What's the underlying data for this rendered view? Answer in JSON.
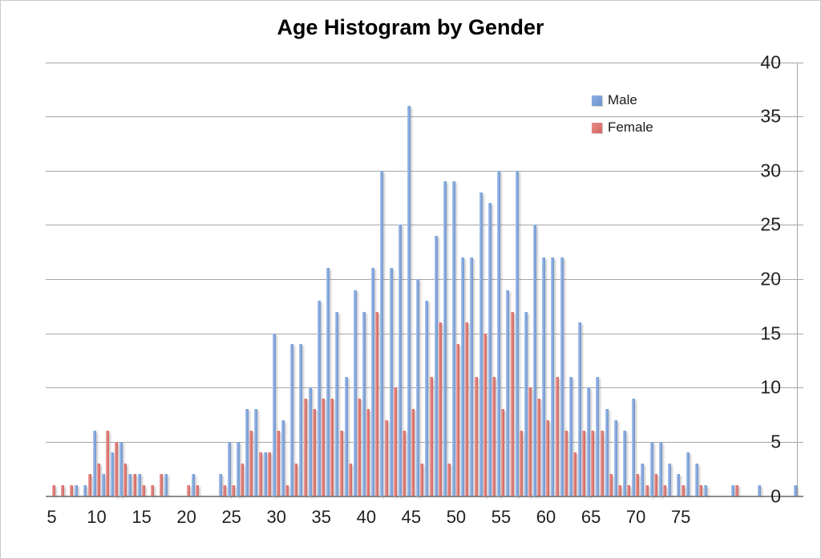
{
  "title": "Age Histogram by Gender",
  "legend": [
    {
      "label": "Male",
      "color": "#7fa3da"
    },
    {
      "label": "Female",
      "color": "#dd7a76"
    }
  ],
  "colors": {
    "male_mid": "#7fa3da",
    "female_mid": "#dd7a76",
    "gridline": "#a6a6a6",
    "axis": "#8c8c8c"
  },
  "y_axis": {
    "ticks": [
      0,
      5,
      10,
      15,
      20,
      25,
      30,
      35,
      40
    ],
    "min": 0,
    "max": 40
  },
  "x_axis": {
    "ticks": [
      5,
      10,
      15,
      20,
      25,
      30,
      35,
      40,
      45,
      50,
      55,
      60,
      65,
      70,
      75
    ]
  },
  "chart_data": {
    "type": "bar",
    "title": "Age Histogram by Gender",
    "xlabel": "",
    "ylabel": "",
    "ylim": [
      0,
      40
    ],
    "grid": true,
    "legend_position": "top-right-inside",
    "age_start": 5,
    "ages": [
      5,
      6,
      7,
      8,
      9,
      10,
      11,
      12,
      13,
      14,
      15,
      16,
      17,
      18,
      19,
      20,
      21,
      22,
      23,
      24,
      25,
      26,
      27,
      28,
      29,
      30,
      31,
      32,
      33,
      34,
      35,
      36,
      37,
      38,
      39,
      40,
      41,
      42,
      43,
      44,
      45,
      46,
      47,
      48,
      49,
      50,
      51,
      52,
      53,
      54,
      55,
      56,
      57,
      58,
      59,
      60,
      61,
      62,
      63,
      64,
      65,
      66,
      67,
      68,
      69,
      70,
      71,
      72,
      73,
      74,
      75,
      76,
      77,
      78,
      79,
      80,
      81,
      82,
      83,
      84,
      85,
      86,
      87,
      88
    ],
    "series": [
      {
        "name": "Male",
        "values": [
          0,
          0,
          0,
          1,
          1,
          6,
          2,
          4,
          5,
          2,
          2,
          0,
          0,
          2,
          0,
          0,
          2,
          0,
          0,
          2,
          5,
          5,
          8,
          8,
          4,
          15,
          7,
          14,
          14,
          10,
          18,
          21,
          17,
          11,
          19,
          17,
          21,
          30,
          21,
          25,
          36,
          20,
          18,
          24,
          29,
          29,
          22,
          22,
          28,
          27,
          30,
          19,
          30,
          17,
          25,
          22,
          22,
          22,
          11,
          16,
          10,
          11,
          8,
          7,
          6,
          9,
          3,
          5,
          5,
          3,
          2,
          4,
          3,
          1,
          0,
          0,
          1,
          0,
          0,
          1,
          0,
          0,
          0,
          1
        ]
      },
      {
        "name": "Female",
        "values": [
          1,
          1,
          1,
          0,
          2,
          3,
          6,
          5,
          3,
          2,
          1,
          1,
          2,
          0,
          0,
          1,
          1,
          0,
          0,
          1,
          1,
          3,
          6,
          4,
          4,
          6,
          1,
          3,
          9,
          8,
          9,
          9,
          6,
          3,
          9,
          8,
          17,
          7,
          10,
          6,
          8,
          3,
          11,
          16,
          3,
          14,
          16,
          11,
          15,
          11,
          8,
          17,
          6,
          10,
          9,
          7,
          11,
          6,
          4,
          6,
          6,
          6,
          2,
          1,
          1,
          2,
          1,
          2,
          1,
          0,
          1,
          0,
          1,
          0,
          0,
          0,
          1,
          0,
          0,
          0,
          0,
          0,
          0,
          0
        ]
      }
    ]
  }
}
